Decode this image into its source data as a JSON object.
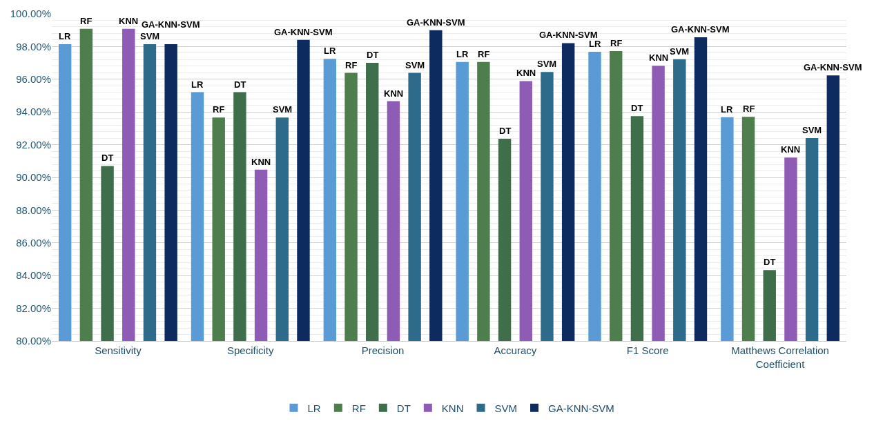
{
  "chart_data": {
    "type": "bar",
    "categories": [
      "Sensitivity",
      "Specificity",
      "Precision",
      "Accuracy",
      "F1 Score",
      "Matthews Correlation Coefficient"
    ],
    "series": [
      {
        "name": "LR",
        "color": "#5b9bd5",
        "values": [
          98.14,
          95.21,
          97.25,
          97.06,
          97.68,
          93.68
        ],
        "value_labels": [
          "LR",
          "LR",
          "LR",
          "LR",
          "LR",
          "LR"
        ]
      },
      {
        "name": "RF",
        "color": "#4e7d4e",
        "values": [
          99.08,
          93.66,
          96.39,
          97.06,
          97.72,
          93.7
        ],
        "value_labels": [
          "RF",
          "RF",
          "RF",
          "RF",
          "RF",
          "RF"
        ]
      },
      {
        "name": "DT",
        "color": "#3f6e4a",
        "values": [
          90.7,
          95.21,
          97.0,
          92.36,
          93.74,
          84.34
        ],
        "value_labels": [
          "DT",
          "DT",
          "DT",
          "DT",
          "DT",
          "DT"
        ]
      },
      {
        "name": "KNN",
        "color": "#8e5bb5",
        "values": [
          99.08,
          90.47,
          94.66,
          95.89,
          96.83,
          91.21
        ],
        "value_labels": [
          "KNN",
          "KNN",
          "KNN",
          "KNN",
          "KNN",
          "KNN"
        ]
      },
      {
        "name": "SVM",
        "color": "#2e6b8a",
        "values": [
          98.14,
          93.66,
          96.39,
          96.44,
          97.23,
          92.4
        ],
        "value_labels": [
          "SVM",
          "SVM",
          "SVM",
          "SVM",
          "SVM",
          "SVM"
        ]
      },
      {
        "name": "GA-KNN-SVM",
        "color": "#0d2b5e",
        "values": [
          98.14,
          98.41,
          99.0,
          98.21,
          98.57,
          96.23
        ],
        "value_labels": [
          "GA-KNN-SVM",
          "GA-KNN-SVM",
          "GA-KNN-SVM",
          "GA-KNN-SVM",
          "GA-KNN-SVM",
          "GA-KNN-SVM"
        ]
      }
    ],
    "ylim": [
      80,
      100
    ],
    "yticks": [
      {
        "value": 80,
        "label": "80.00%"
      },
      {
        "value": 82,
        "label": "82.00%"
      },
      {
        "value": 84,
        "label": "84.00%"
      },
      {
        "value": 86,
        "label": "86.00%"
      },
      {
        "value": 88,
        "label": "88.00%"
      },
      {
        "value": 90,
        "label": "90.00%"
      },
      {
        "value": 92,
        "label": "92.00%"
      },
      {
        "value": 94,
        "label": "94.00%"
      },
      {
        "value": 96,
        "label": "96.00%"
      },
      {
        "value": 98,
        "label": "98.00%"
      },
      {
        "value": 100,
        "label": "100.00%"
      }
    ],
    "grid": "y",
    "legend": "bottom"
  }
}
